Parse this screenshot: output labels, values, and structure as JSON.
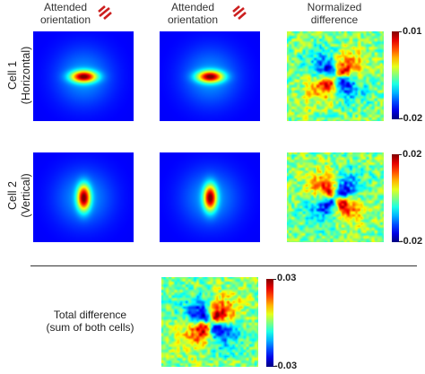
{
  "headers": {
    "col1": [
      "Attended",
      "orientation"
    ],
    "col2": [
      "Attended",
      "orientation"
    ],
    "col3": [
      "Normalized",
      "difference"
    ]
  },
  "rows": [
    {
      "label_line1": "Cell 1",
      "label_line2": "(Horizontal)",
      "orientation": "horizontal",
      "colorbar": {
        "max": "0.01",
        "min": "-0.02"
      }
    },
    {
      "label_line1": "Cell 2",
      "label_line2": "(Vertical)",
      "orientation": "vertical",
      "colorbar": {
        "max": "0.02",
        "min": "-0.02"
      }
    }
  ],
  "total": {
    "label_line1": "Total difference",
    "label_line2": "(sum of both cells)",
    "colorbar": {
      "max": "0.03",
      "min": "-0.03"
    }
  },
  "colors": {
    "orientation_icon": "#cc1f1f",
    "rf_background": "#1b2fb0",
    "divider": "#333333"
  },
  "icons": {
    "col1": "diagonal-grating-icon",
    "col2": "diagonal-grating-icon"
  }
}
